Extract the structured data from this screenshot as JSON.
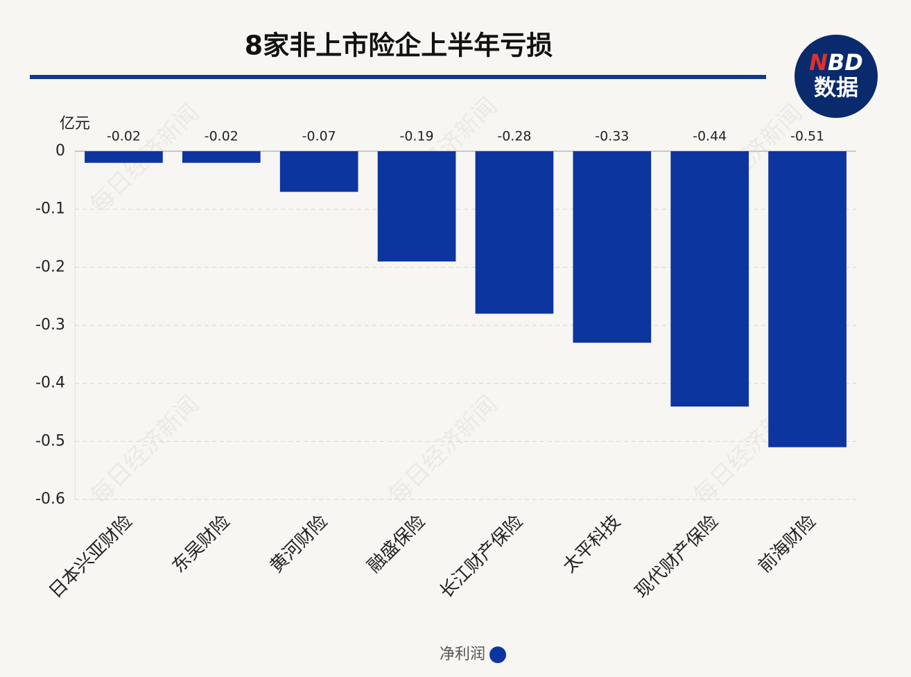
{
  "chart_data": {
    "type": "bar",
    "title": "8家非上市险企上半年亏损",
    "y_unit": "亿元",
    "categories": [
      "日本兴亚财险",
      "东吴财险",
      "黄河财险",
      "融盛保险",
      "长江财产保险",
      "太平科技",
      "现代财产保险",
      "前海财险"
    ],
    "series": [
      {
        "name": "净利润",
        "color": "#0d35a0",
        "values": [
          -0.02,
          -0.02,
          -0.07,
          -0.19,
          -0.28,
          -0.33,
          -0.44,
          -0.51
        ]
      }
    ],
    "ylim": [
      -0.6,
      0
    ],
    "yticks": [
      0,
      -0.1,
      -0.2,
      -0.3,
      -0.4,
      -0.5,
      -0.6
    ],
    "grid": true,
    "legend": "bottom"
  },
  "logo": {
    "n": "N",
    "bd": "BD",
    "sub": "数据"
  },
  "watermark": "每日经济新闻"
}
